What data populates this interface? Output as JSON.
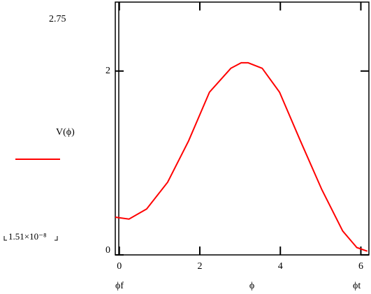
{
  "chart_data": {
    "type": "line",
    "x_label": "ϕ",
    "x_range_labels": [
      "ϕf",
      "ϕt"
    ],
    "x": [
      -0.1,
      0.24,
      0.68,
      1.2,
      1.72,
      2.24,
      2.77,
      3.03,
      3.2,
      3.55,
      3.98,
      4.5,
      5.03,
      5.55,
      5.9,
      6.16
    ],
    "series": [
      {
        "name": "V(ϕ)",
        "color": "#ff0000",
        "values": [
          0.41,
          0.39,
          0.5,
          0.79,
          1.24,
          1.77,
          2.03,
          2.09,
          2.09,
          2.03,
          1.77,
          1.24,
          0.71,
          0.26,
          0.08,
          0.04
        ]
      }
    ],
    "xlim": [
      -0.1,
      6.2
    ],
    "ylim": [
      {
        "value": 1.51e-08,
        "label": "1.51×10⁻⁸"
      },
      2.75
    ],
    "xticks": [
      0,
      2,
      4,
      6
    ],
    "yticks": [
      0,
      2
    ]
  }
}
